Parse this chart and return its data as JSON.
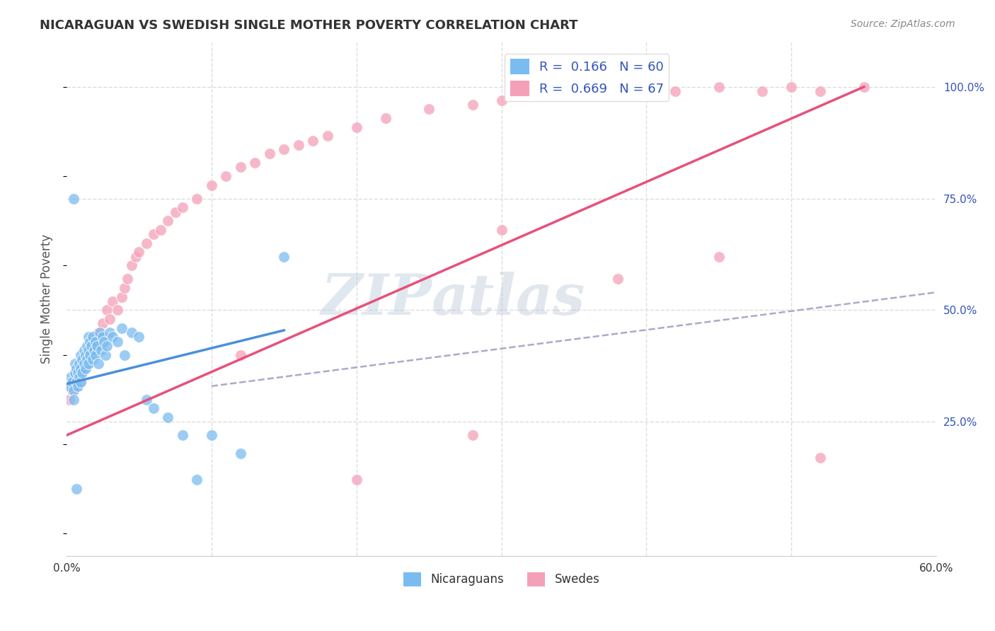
{
  "title": "NICARAGUAN VS SWEDISH SINGLE MOTHER POVERTY CORRELATION CHART",
  "source": "Source: ZipAtlas.com",
  "ylabel": "Single Mother Poverty",
  "xlim": [
    0.0,
    0.6
  ],
  "ylim": [
    -0.05,
    1.1
  ],
  "xticks": [
    0.0,
    0.1,
    0.2,
    0.3,
    0.4,
    0.5,
    0.6
  ],
  "xticklabels": [
    "0.0%",
    "",
    "",
    "",
    "",
    "",
    "60.0%"
  ],
  "yticks_right": [
    0.25,
    0.5,
    0.75,
    1.0
  ],
  "ytick_labels_right": [
    "25.0%",
    "50.0%",
    "75.0%",
    "100.0%"
  ],
  "nicaraguan_R": 0.166,
  "nicaraguan_N": 60,
  "swedish_R": 0.669,
  "swedish_N": 67,
  "blue_color": "#7bbcf0",
  "pink_color": "#f4a0b8",
  "blue_line_color": "#4a90d9",
  "pink_line_color": "#e8507a",
  "dashed_line_color": "#aaaacc",
  "watermark_zip": "ZIP",
  "watermark_atlas": "atlas",
  "legend_labels": [
    "Nicaraguans",
    "Swedes"
  ],
  "background_color": "#ffffff",
  "grid_color": "#dddddd",
  "title_color": "#333333",
  "axis_label_color": "#3355bb",
  "blue_scatter_x": [
    0.002,
    0.003,
    0.004,
    0.005,
    0.005,
    0.006,
    0.006,
    0.007,
    0.007,
    0.008,
    0.008,
    0.009,
    0.009,
    0.01,
    0.01,
    0.01,
    0.011,
    0.011,
    0.012,
    0.012,
    0.013,
    0.013,
    0.014,
    0.014,
    0.015,
    0.015,
    0.015,
    0.016,
    0.016,
    0.017,
    0.018,
    0.018,
    0.019,
    0.02,
    0.02,
    0.021,
    0.022,
    0.023,
    0.024,
    0.025,
    0.026,
    0.027,
    0.028,
    0.03,
    0.032,
    0.035,
    0.038,
    0.04,
    0.045,
    0.05,
    0.055,
    0.06,
    0.07,
    0.08,
    0.09,
    0.1,
    0.12,
    0.15,
    0.005,
    0.007
  ],
  "blue_scatter_y": [
    0.33,
    0.35,
    0.34,
    0.32,
    0.3,
    0.36,
    0.38,
    0.34,
    0.37,
    0.33,
    0.36,
    0.38,
    0.35,
    0.37,
    0.4,
    0.34,
    0.36,
    0.39,
    0.38,
    0.41,
    0.37,
    0.4,
    0.39,
    0.42,
    0.38,
    0.41,
    0.44,
    0.4,
    0.43,
    0.42,
    0.39,
    0.44,
    0.41,
    0.4,
    0.43,
    0.42,
    0.38,
    0.45,
    0.41,
    0.44,
    0.43,
    0.4,
    0.42,
    0.45,
    0.44,
    0.43,
    0.46,
    0.4,
    0.45,
    0.44,
    0.3,
    0.28,
    0.26,
    0.22,
    0.12,
    0.22,
    0.18,
    0.62,
    0.75,
    0.1
  ],
  "pink_scatter_x": [
    0.002,
    0.003,
    0.004,
    0.005,
    0.006,
    0.007,
    0.008,
    0.009,
    0.01,
    0.01,
    0.012,
    0.013,
    0.014,
    0.015,
    0.016,
    0.018,
    0.02,
    0.022,
    0.025,
    0.028,
    0.03,
    0.032,
    0.035,
    0.038,
    0.04,
    0.042,
    0.045,
    0.048,
    0.05,
    0.055,
    0.06,
    0.065,
    0.07,
    0.075,
    0.08,
    0.09,
    0.1,
    0.11,
    0.12,
    0.13,
    0.14,
    0.15,
    0.16,
    0.17,
    0.18,
    0.2,
    0.22,
    0.25,
    0.28,
    0.3,
    0.32,
    0.35,
    0.38,
    0.4,
    0.42,
    0.45,
    0.48,
    0.5,
    0.52,
    0.55,
    0.12,
    0.2,
    0.3,
    0.45,
    0.28,
    0.38,
    0.52
  ],
  "pink_scatter_y": [
    0.3,
    0.33,
    0.32,
    0.34,
    0.36,
    0.33,
    0.35,
    0.38,
    0.36,
    0.34,
    0.37,
    0.39,
    0.41,
    0.38,
    0.4,
    0.43,
    0.42,
    0.45,
    0.47,
    0.5,
    0.48,
    0.52,
    0.5,
    0.53,
    0.55,
    0.57,
    0.6,
    0.62,
    0.63,
    0.65,
    0.67,
    0.68,
    0.7,
    0.72,
    0.73,
    0.75,
    0.78,
    0.8,
    0.82,
    0.83,
    0.85,
    0.86,
    0.87,
    0.88,
    0.89,
    0.91,
    0.93,
    0.95,
    0.96,
    0.97,
    0.98,
    0.99,
    1.0,
    1.0,
    0.99,
    1.0,
    0.99,
    1.0,
    0.99,
    1.0,
    0.4,
    0.12,
    0.68,
    0.62,
    0.22,
    0.57,
    0.17
  ],
  "blue_line": {
    "x0": 0.0,
    "x1": 0.15,
    "y0": 0.335,
    "y1": 0.455
  },
  "pink_line": {
    "x0": 0.0,
    "x1": 0.55,
    "y0": 0.22,
    "y1": 1.0
  },
  "dashed_line": {
    "x0": 0.1,
    "x1": 0.6,
    "y0": 0.33,
    "y1": 0.54
  }
}
